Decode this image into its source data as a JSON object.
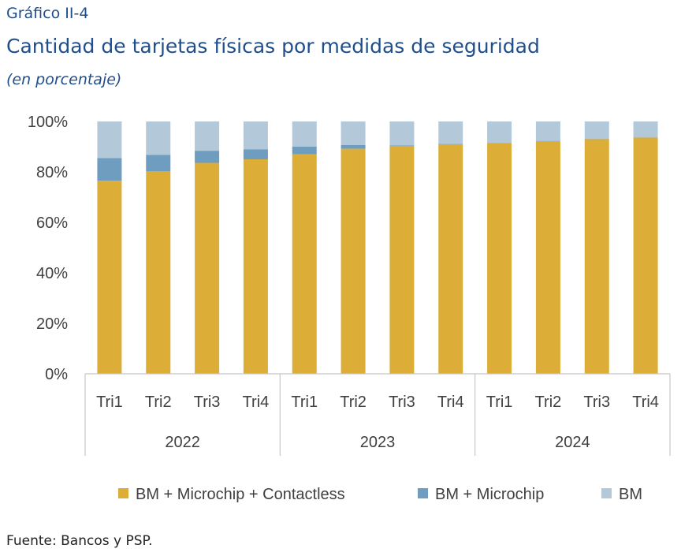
{
  "header": {
    "kicker": "Gráfico II-4",
    "title": "Cantidad de tarjetas físicas por medidas de seguridad",
    "subtitle": "(en porcentaje)"
  },
  "footer": {
    "source": "Fuente: Bancos y PSP."
  },
  "chart_data": {
    "type": "bar",
    "stacked": true,
    "categories": [
      "Tri1",
      "Tri2",
      "Tri3",
      "Tri4",
      "Tri1",
      "Tri2",
      "Tri3",
      "Tri4",
      "Tri1",
      "Tri2",
      "Tri3",
      "Tri4"
    ],
    "groups": [
      {
        "label": "2022",
        "count": 4
      },
      {
        "label": "2023",
        "count": 4
      },
      {
        "label": "2024",
        "count": 4
      }
    ],
    "series": [
      {
        "name": "BM + Microchip + Contactless",
        "color": "#DDAE37",
        "values": [
          76.5,
          80.2,
          83.6,
          85.0,
          87.0,
          89.2,
          90.2,
          91.0,
          91.3,
          92.1,
          93.0,
          93.6
        ]
      },
      {
        "name": "BM + Microchip",
        "color": "#6E9DC0",
        "values": [
          9.0,
          6.6,
          4.8,
          4.0,
          3.0,
          1.5,
          0.3,
          0.2,
          0.2,
          0.2,
          0.1,
          0.1
        ]
      },
      {
        "name": "BM",
        "color": "#B3C9DA",
        "values": [
          14.5,
          13.2,
          11.6,
          11.0,
          10.0,
          9.3,
          9.5,
          8.8,
          8.5,
          7.7,
          6.9,
          6.3
        ]
      }
    ],
    "ylim": [
      0,
      100
    ],
    "yticks": [
      "0%",
      "20%",
      "40%",
      "60%",
      "80%",
      "100%"
    ],
    "legend_position": "bottom"
  }
}
